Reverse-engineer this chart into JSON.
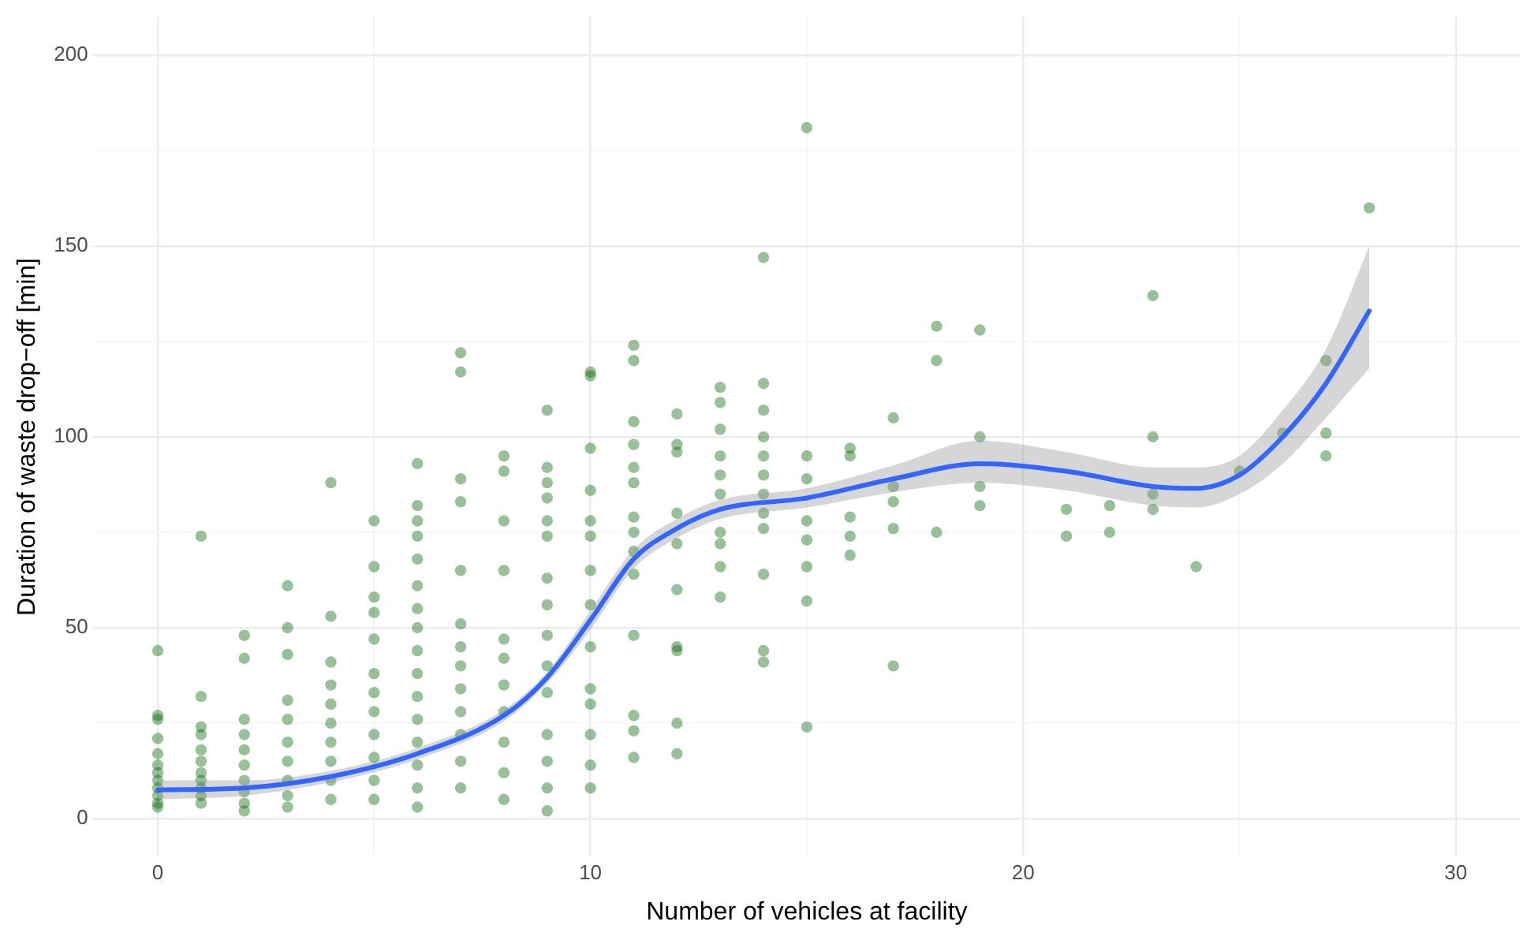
{
  "chart_data": {
    "type": "scatter",
    "xlabel": "Number of vehicles at facility",
    "ylabel": "Duration of waste drop−off [min]",
    "xlim": [
      -1.5,
      31.5
    ],
    "ylim": [
      -10,
      210
    ],
    "xticks": [
      0,
      {
        "value": 5,
        "label": null
      },
      10,
      {
        "value": 15,
        "label": null
      },
      20,
      {
        "value": 25,
        "label": null
      },
      30
    ],
    "yticks": [
      0,
      {
        "value": 25,
        "label": null
      },
      50,
      {
        "value": 75,
        "label": null
      },
      100,
      {
        "value": 125,
        "label": null
      },
      150,
      {
        "value": 175,
        "label": null
      },
      200
    ],
    "grid": true,
    "legend": false,
    "series": [
      {
        "marker": "circle",
        "color": "#006400",
        "x": [
          0,
          0,
          0,
          0,
          0,
          0,
          0,
          0,
          0,
          0,
          0,
          0,
          1,
          1,
          1,
          1,
          1,
          1,
          1,
          1,
          1,
          1,
          1,
          2,
          2,
          2,
          2,
          2,
          2,
          2,
          2,
          2,
          2,
          3,
          3,
          3,
          3,
          3,
          3,
          3,
          3,
          3,
          3,
          4,
          4,
          4,
          4,
          4,
          4,
          4,
          4,
          4,
          4,
          5,
          5,
          5,
          5,
          5,
          5,
          5,
          5,
          5,
          5,
          5,
          5,
          6,
          6,
          6,
          6,
          6,
          6,
          6,
          6,
          6,
          6,
          6,
          6,
          6,
          6,
          6,
          6,
          7,
          7,
          7,
          7,
          7,
          7,
          7,
          7,
          7,
          7,
          7,
          7,
          7,
          8,
          8,
          8,
          8,
          8,
          8,
          8,
          8,
          8,
          8,
          8,
          9,
          9,
          9,
          9,
          9,
          9,
          9,
          9,
          9,
          9,
          9,
          9,
          9,
          9,
          9,
          10,
          10,
          10,
          10,
          10,
          10,
          10,
          10,
          10,
          10,
          10,
          10,
          10,
          10,
          11,
          11,
          11,
          11,
          11,
          11,
          11,
          11,
          11,
          11,
          11,
          11,
          11,
          11,
          12,
          12,
          12,
          12,
          12,
          12,
          12,
          12,
          12,
          12,
          13,
          13,
          13,
          13,
          13,
          13,
          13,
          13,
          13,
          13,
          14,
          14,
          14,
          14,
          14,
          14,
          14,
          14,
          14,
          14,
          14,
          14,
          15,
          15,
          15,
          15,
          15,
          15,
          15,
          15,
          16,
          16,
          16,
          16,
          16,
          17,
          17,
          17,
          17,
          17,
          18,
          18,
          18,
          19,
          19,
          19,
          19,
          21,
          21,
          22,
          22,
          23,
          23,
          23,
          23,
          24,
          25,
          26,
          27,
          27,
          27,
          28
        ],
        "values": [
          44,
          27,
          26,
          21,
          17,
          14,
          12,
          10,
          8,
          6,
          4,
          3,
          74,
          32,
          24,
          22,
          18,
          15,
          12,
          10,
          8,
          6,
          4,
          48,
          42,
          26,
          22,
          18,
          14,
          10,
          7,
          4,
          2,
          61,
          50,
          43,
          31,
          26,
          20,
          15,
          10,
          6,
          3,
          88,
          53,
          41,
          35,
          30,
          25,
          20,
          15,
          10,
          5,
          78,
          66,
          58,
          54,
          47,
          38,
          33,
          28,
          22,
          16,
          10,
          5,
          93,
          82,
          78,
          74,
          68,
          61,
          55,
          50,
          44,
          38,
          32,
          26,
          20,
          14,
          8,
          3,
          122,
          117,
          89,
          83,
          65,
          51,
          45,
          40,
          34,
          28,
          22,
          15,
          8,
          95,
          91,
          78,
          65,
          47,
          42,
          35,
          28,
          20,
          12,
          5,
          107,
          92,
          88,
          84,
          78,
          74,
          63,
          56,
          48,
          40,
          33,
          22,
          15,
          8,
          2,
          117,
          116,
          97,
          86,
          78,
          74,
          65,
          56,
          45,
          34,
          30,
          22,
          14,
          8,
          124,
          120,
          104,
          98,
          92,
          88,
          79,
          75,
          70,
          64,
          48,
          27,
          23,
          16,
          106,
          98,
          96,
          80,
          72,
          60,
          45,
          44,
          25,
          17,
          113,
          109,
          102,
          95,
          90,
          85,
          75,
          72,
          66,
          58,
          147,
          114,
          107,
          100,
          95,
          90,
          85,
          80,
          76,
          64,
          44,
          41,
          181,
          95,
          89,
          78,
          73,
          66,
          57,
          24,
          97,
          95,
          79,
          74,
          69,
          105,
          87,
          83,
          76,
          40,
          129,
          120,
          75,
          128,
          100,
          87,
          82,
          81,
          74,
          82,
          75,
          137,
          100,
          85,
          81,
          66,
          91,
          101,
          120,
          101,
          95,
          160
        ]
      },
      {
        "type": "line",
        "marker": "none",
        "color": "#3366ff",
        "x": [
          0,
          2,
          4,
          6,
          8,
          9,
          10,
          11,
          12,
          13,
          15,
          17,
          19,
          21,
          23,
          24,
          25,
          26,
          27,
          28
        ],
        "values": [
          7.5,
          8,
          11,
          17,
          27,
          37,
          52,
          68,
          76,
          81,
          84,
          89,
          93,
          91,
          87,
          86.5,
          90,
          100,
          114,
          133
        ],
        "lower": [
          5,
          6,
          9.5,
          15.5,
          25.5,
          35.5,
          49.5,
          65.5,
          73.5,
          78.5,
          81.5,
          85.5,
          88,
          86,
          82,
          81.5,
          85,
          93,
          105,
          118
        ],
        "upper": [
          10,
          10,
          12.5,
          18.5,
          28.5,
          38.5,
          54.5,
          70.5,
          78.5,
          83.5,
          86.5,
          92.5,
          99,
          96,
          92,
          92,
          95,
          107,
          123,
          150
        ]
      }
    ]
  }
}
